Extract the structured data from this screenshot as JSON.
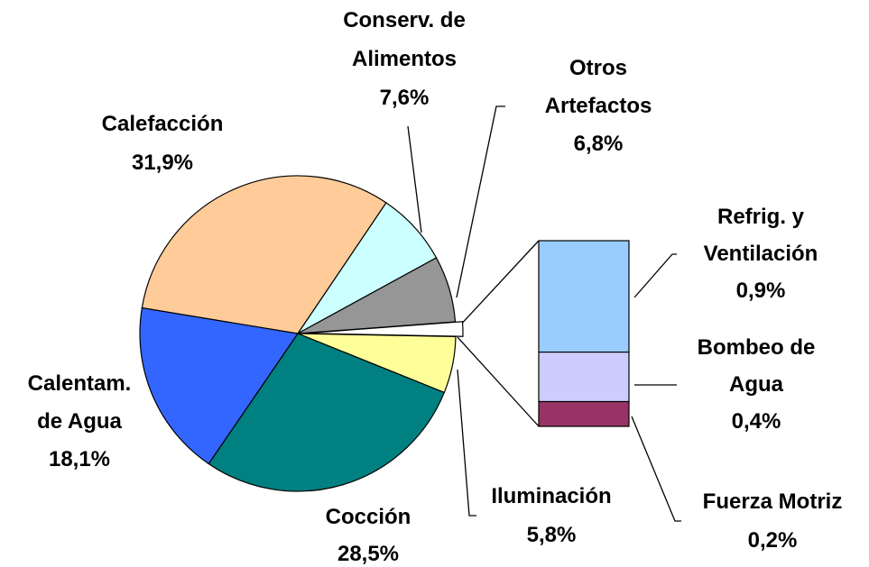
{
  "chart_data": {
    "type": "pie-of-bar",
    "categories": [
      [
        "Conserv. de",
        "Alimentos"
      ],
      [
        "Otros",
        "Artefactos"
      ],
      [
        "Iluminación"
      ],
      [
        "Cocción"
      ],
      [
        "Calentam.",
        "de Agua"
      ],
      [
        "Calefacción"
      ]
    ],
    "values": [
      7.6,
      6.8,
      5.8,
      28.5,
      18.1,
      31.9
    ],
    "value_labels": [
      "7,6%",
      "6,8%",
      "5,8%",
      "28,5%",
      "18,1%",
      "31,9%"
    ],
    "colors": [
      "#CCFFFF",
      "#969696",
      "#FFFF99",
      "#008080",
      "#3366FF",
      "#FFCC99"
    ],
    "breakout": {
      "categories": [
        [
          "Refrig. y",
          "Ventilación"
        ],
        [
          "Bombeo de",
          "Agua"
        ],
        [
          "Fuerza Motriz"
        ]
      ],
      "values": [
        0.9,
        0.4,
        0.2
      ],
      "value_labels": [
        "0,9%",
        "0,4%",
        "0,2%"
      ],
      "colors": [
        "#99CCFF",
        "#CCCCFF",
        "#993366"
      ]
    }
  }
}
